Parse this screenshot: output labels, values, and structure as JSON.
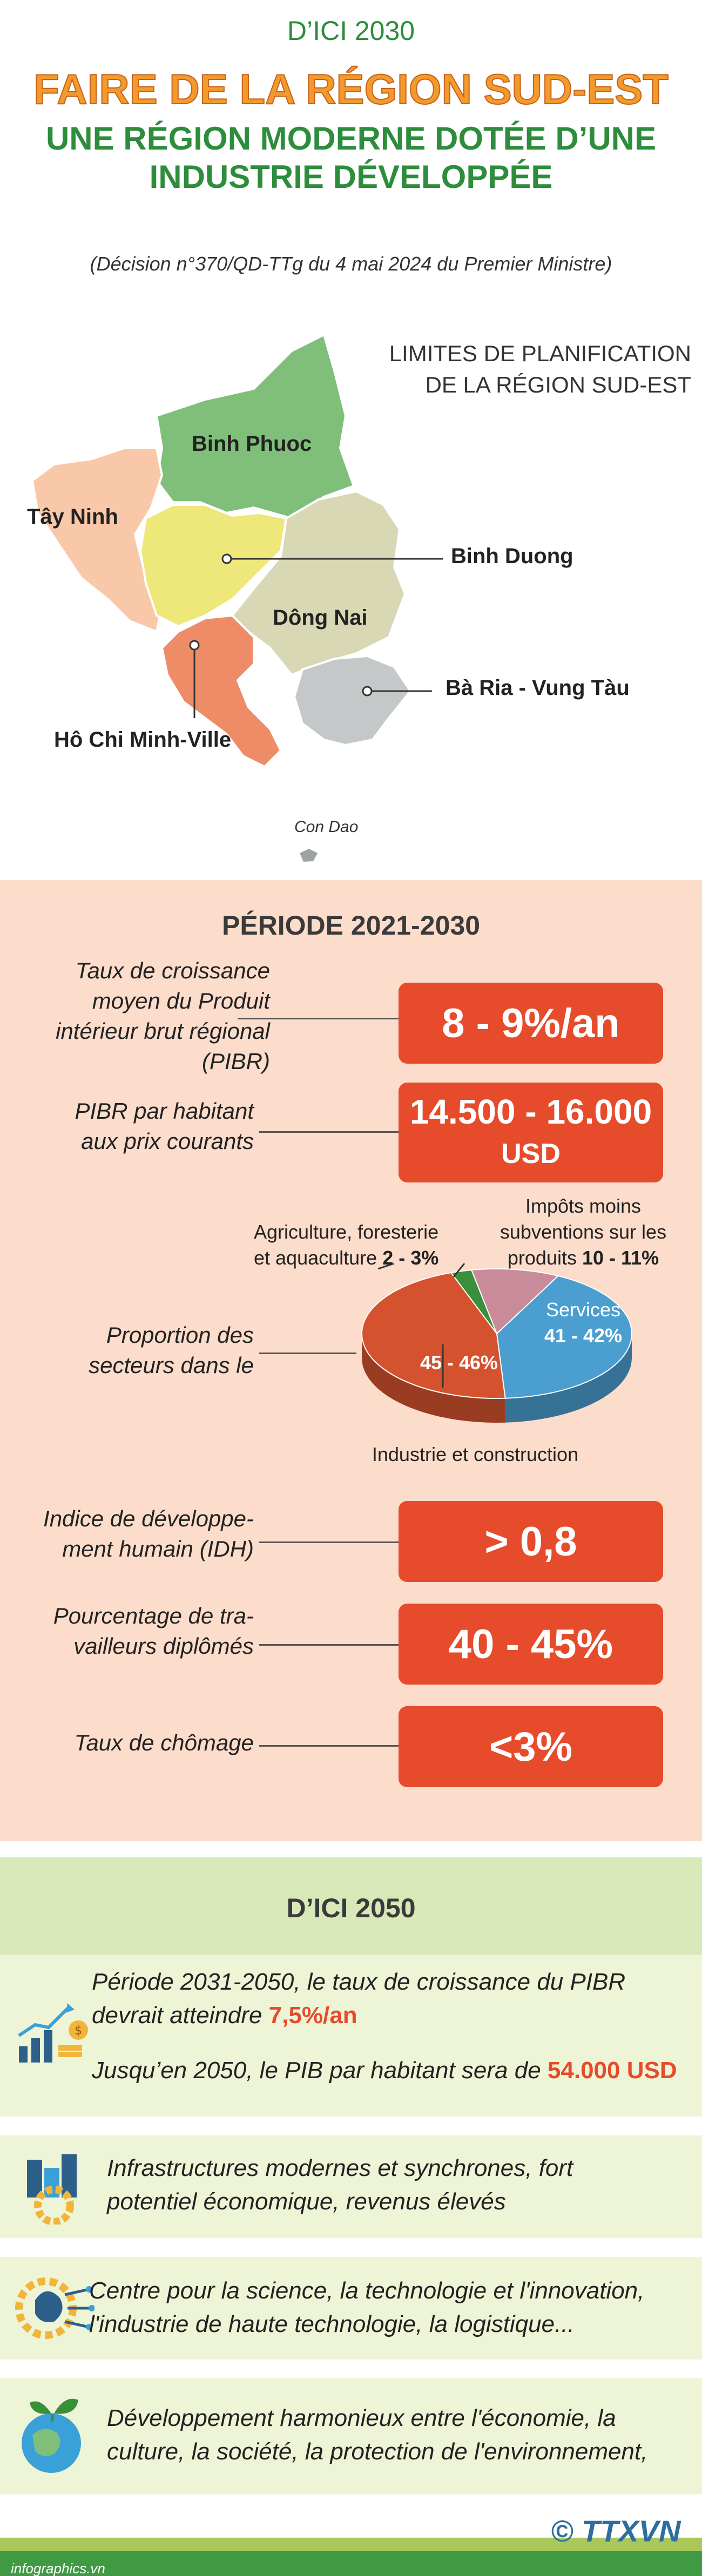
{
  "header": {
    "kicker": "D’ICI 2030",
    "title_line1": "FAIRE DE LA RÉGION SUD-EST",
    "title_line2": "UNE RÉGION MODERNE DOTÉE D’UNE",
    "title_line3": "INDUSTRIE DÉVELOPPÉE",
    "decision": "(Décision n°370/QD-TTg du 4 mai 2024 du Premier Ministre)"
  },
  "map": {
    "title_line1": "LIMITES DE PLANIFICATION",
    "title_line2": "DE LA RÉGION SUD-EST",
    "provinces": {
      "binh_phuoc": "Binh Phuoc",
      "tay_ninh": "Tây Ninh",
      "binh_duong": "Binh Duong",
      "dong_nai": "Dông Nai",
      "ba_ria": "Bà Ria - Vung Tàu",
      "hcm": "Hô Chi Minh-Ville",
      "con_dao": "Con Dao"
    },
    "colors": {
      "binh_phuoc": "#7fbf7a",
      "tay_ninh": "#f9c8a8",
      "binh_duong": "#eee77a",
      "dong_nai": "#d9d8b4",
      "ba_ria": "#c4c8c8",
      "hcm": "#ee8c68"
    }
  },
  "period_2030": {
    "title": "PÉRIODE 2021-2030",
    "indicators": [
      {
        "label_lines": [
          "Taux de croissance",
          "moyen du Produit",
          "intérieur brut régional",
          "(PIBR)"
        ],
        "value_lines": [
          "8 - 9%/an"
        ]
      },
      {
        "label_lines": [
          "PIBR par habitant",
          "aux prix courants"
        ],
        "value_lines": [
          "14.500 - 16.000",
          "USD"
        ]
      },
      {
        "label_lines": [
          "Indice de développe-",
          "ment humain (IDH)"
        ],
        "value_lines": [
          "> 0,8"
        ]
      },
      {
        "label_lines": [
          "Pourcentage de tra-",
          "vailleurs diplômés"
        ],
        "value_lines": [
          "40 - 45%"
        ]
      },
      {
        "label_lines": [
          "Taux de chômage"
        ],
        "value_lines": [
          "<3%"
        ]
      }
    ],
    "sectors": {
      "label_lines": [
        "Proportion des",
        "secteurs dans le"
      ],
      "agri_lines": [
        "Agriculture, foresterie"
      ],
      "agri_line2": "et aquaculture",
      "agri_value": "2 - 3%",
      "tax_lines": [
        "Impôts moins",
        "subventions sur les"
      ],
      "tax_line3": "produits",
      "tax_value": "10 - 11%",
      "services_label": "Services",
      "services_value": "41 - 42%",
      "industry_value": "45 - 46%",
      "industry_label": "Industrie et construction"
    }
  },
  "chart_data": {
    "type": "pie",
    "categories": [
      "Services",
      "Industrie et construction",
      "Agriculture, foresterie et aquaculture",
      "Impôts moins subventions sur les produits"
    ],
    "labels": [
      "41 - 42%",
      "45 - 46%",
      "2 - 3%",
      "10 - 11%"
    ],
    "values": [
      41.5,
      45.5,
      2.5,
      10.5
    ],
    "colors": [
      "#4a9fd0",
      "#d4532e",
      "#3a8f3a",
      "#c98a9a"
    ]
  },
  "period_2050": {
    "title": "D’ICI 2050",
    "items": [
      {
        "text_a": "Période 2031-2050, le taux de croissance du PIBR",
        "text_b": "devrait atteindre",
        "highlight_b": "7,5%/an",
        "text_c": "Jusqu’en 2050, le PIB par habitant sera de",
        "highlight_c": "54.000 USD",
        "icon": "growth-chart-icon"
      },
      {
        "line1": "Infrastructures modernes et synchrones, fort",
        "line2": "potentiel économique, revenus élevés",
        "icon": "city-gear-icon"
      },
      {
        "line1": "Centre pour la science, la technologie et l'innovation,",
        "line2": "l'industrie de haute technologie, la logistique...",
        "icon": "brain-circuit-icon"
      },
      {
        "line1": "Développement harmonieux entre l'économie, la",
        "line2": "culture, la société, la protection de l'environnement,",
        "icon": "globe-leaf-icon"
      }
    ]
  },
  "footer": {
    "site": "infographics.vn",
    "logo_text": "© TTXVN",
    "brand_color": "#3f9a43"
  }
}
